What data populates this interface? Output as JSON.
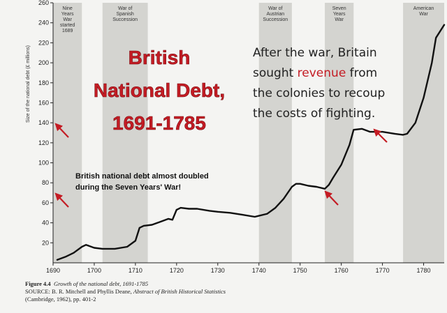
{
  "chart_data": {
    "type": "line",
    "title": "British National Debt, 1691-1785",
    "title_lines": [
      "British",
      "National Debt,",
      "1691-1785"
    ],
    "ylabel": "Size of the national debt (£ millions)",
    "xlim": [
      1690,
      1785
    ],
    "ylim": [
      0,
      260
    ],
    "x_ticks": [
      "1690",
      "1700",
      "1710",
      "1720",
      "1730",
      "1740",
      "1750",
      "1760",
      "1770",
      "1780"
    ],
    "y_ticks": [
      "20",
      "40",
      "60",
      "80",
      "100",
      "120",
      "140",
      "160",
      "180",
      "200",
      "220",
      "240",
      "260"
    ],
    "series": [
      {
        "x": [
          1691,
          1693,
          1695,
          1697,
          1698,
          1700,
          1702,
          1705,
          1708,
          1710,
          1711,
          1712,
          1714,
          1716,
          1718,
          1719,
          1720,
          1721,
          1723,
          1725,
          1728,
          1730,
          1733,
          1736,
          1739,
          1740,
          1742,
          1744,
          1746,
          1748,
          1749,
          1750,
          1752,
          1754,
          1756,
          1757,
          1758,
          1760,
          1762,
          1763,
          1765,
          1767,
          1770,
          1773,
          1775,
          1776,
          1778,
          1780,
          1782,
          1783,
          1785
        ],
        "values": [
          3,
          6,
          10,
          16,
          18,
          15,
          14,
          14,
          16,
          22,
          35,
          37,
          38,
          41,
          44,
          43,
          53,
          55,
          54,
          54,
          52,
          51,
          50,
          48,
          46,
          47,
          49,
          55,
          64,
          76,
          79,
          79,
          77,
          76,
          74,
          78,
          85,
          98,
          118,
          133,
          134,
          131,
          131,
          129,
          128,
          129,
          140,
          165,
          200,
          225,
          238
        ]
      }
    ],
    "wars": [
      {
        "name": "Nine Years War started 1689",
        "start": 1690,
        "end": 1697
      },
      {
        "name": "War of Spanish Succession",
        "start": 1702,
        "end": 1713
      },
      {
        "name": "War of Austrian Succession",
        "start": 1740,
        "end": 1748
      },
      {
        "name": "Seven Years War",
        "start": 1756,
        "end": 1763
      },
      {
        "name": "American War",
        "start": 1775,
        "end": 1785
      }
    ],
    "annotations": {
      "revenue_text_before": "After the war, Britain",
      "revenue_text_mid1": "sought ",
      "revenue_word": "revenue",
      "revenue_text_mid2": " from",
      "revenue_line3": "the colonies to recoup",
      "revenue_line4": "the costs of fighting.",
      "seven_years_note_1": "British national debt almost doubled",
      "seven_years_note_2": "during the Seven Years' War!"
    }
  },
  "caption": {
    "figure": "Figure 4.4",
    "figure_title": "Growth of the national debt, 1691-1785",
    "source_prefix": "SOURCE: B. R. Mitchell and Phyllis Deane, ",
    "source_title": "Abstract of British Historical Statistics",
    "source_suffix": "(Cambridge, 1962), pp. 401-2"
  },
  "colors": {
    "war_band": "#d4d4d0",
    "line": "#111111",
    "title_red": "#c41c24",
    "arrow_red": "#c41c24"
  }
}
